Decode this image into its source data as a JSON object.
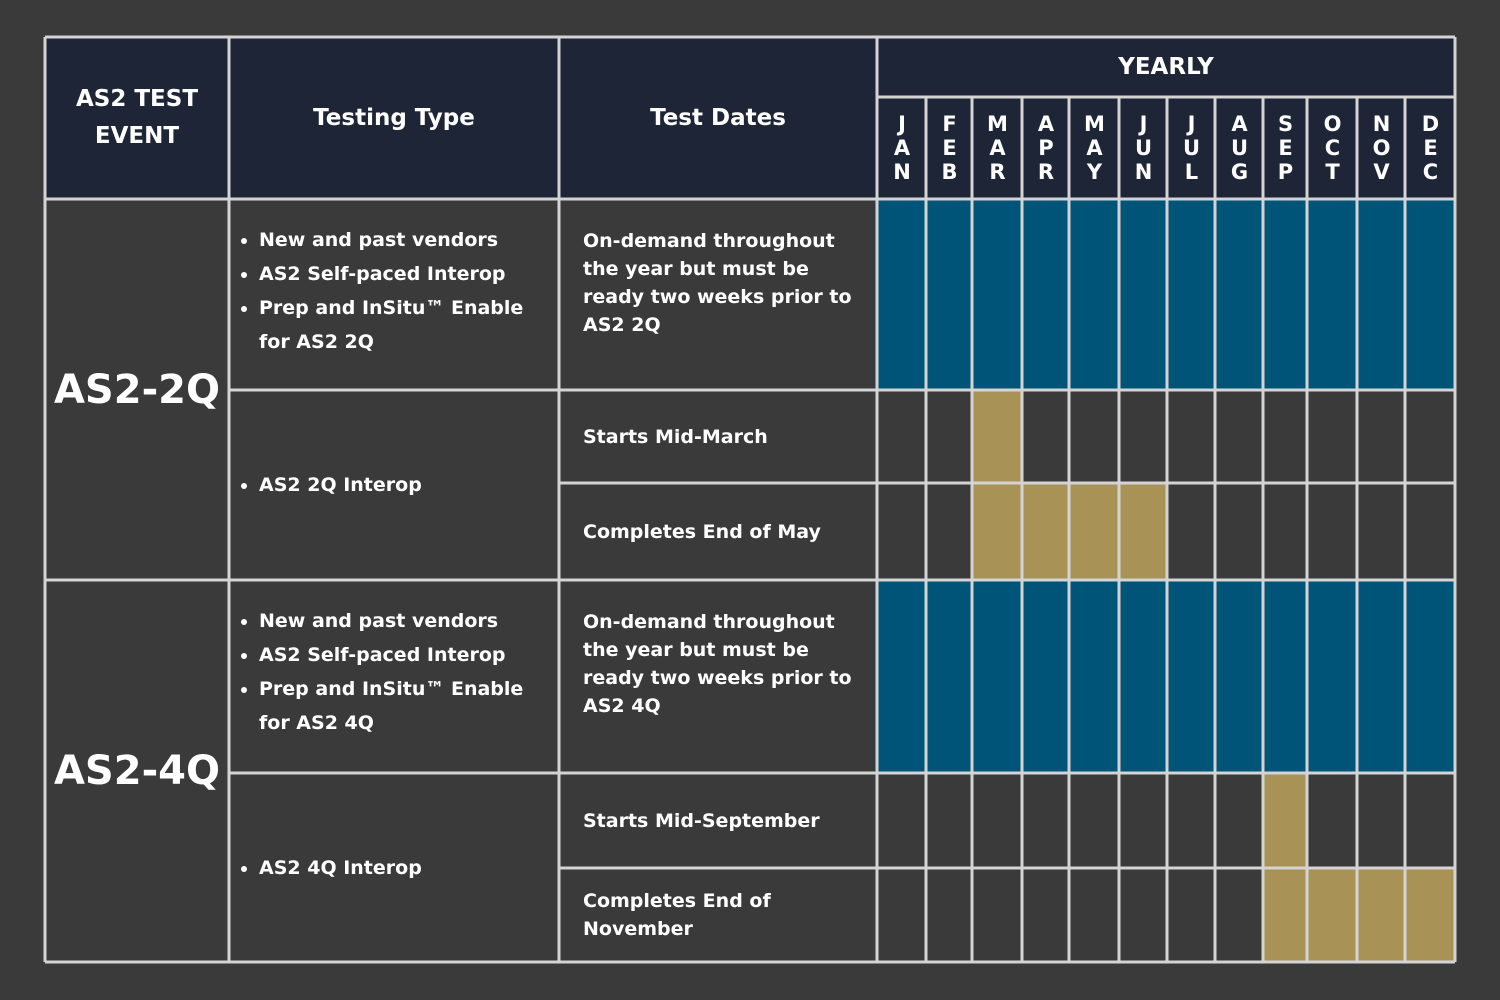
{
  "header": {
    "event": "AS2 TEST EVENT",
    "testing_type": "Testing Type",
    "test_dates": "Test Dates",
    "yearly": "YEARLY",
    "months": [
      "JAN",
      "FEB",
      "MAR",
      "APR",
      "MAY",
      "JUN",
      "JUL",
      "AUG",
      "SEP",
      "OCT",
      "NOV",
      "DEC"
    ]
  },
  "events": [
    {
      "name": "AS2-2Q",
      "rows": [
        {
          "testing_type": [
            "New and past vendors",
            "AS2 Self-paced Interop",
            "Prep and InSitu™ Enable for AS2 2Q"
          ],
          "test_dates": [
            "On-demand throughout the year but must be ready two weeks prior to AS2 2Q"
          ]
        },
        {
          "testing_type": [
            "AS2 2Q Interop"
          ],
          "test_dates": [
            "Starts Mid-March",
            "Completes End of May"
          ]
        }
      ]
    },
    {
      "name": "AS2-4Q",
      "rows": [
        {
          "testing_type": [
            "New and past vendors",
            "AS2 Self-paced Interop",
            "Prep and InSitu™ Enable for AS2 4Q"
          ],
          "test_dates": [
            "On-demand throughout the year but must be ready two weeks prior to AS2 4Q"
          ]
        },
        {
          "testing_type": [
            "AS2 4Q Interop"
          ],
          "test_dates": [
            "Starts Mid-September",
            "Completes End of November"
          ]
        }
      ]
    }
  ]
}
